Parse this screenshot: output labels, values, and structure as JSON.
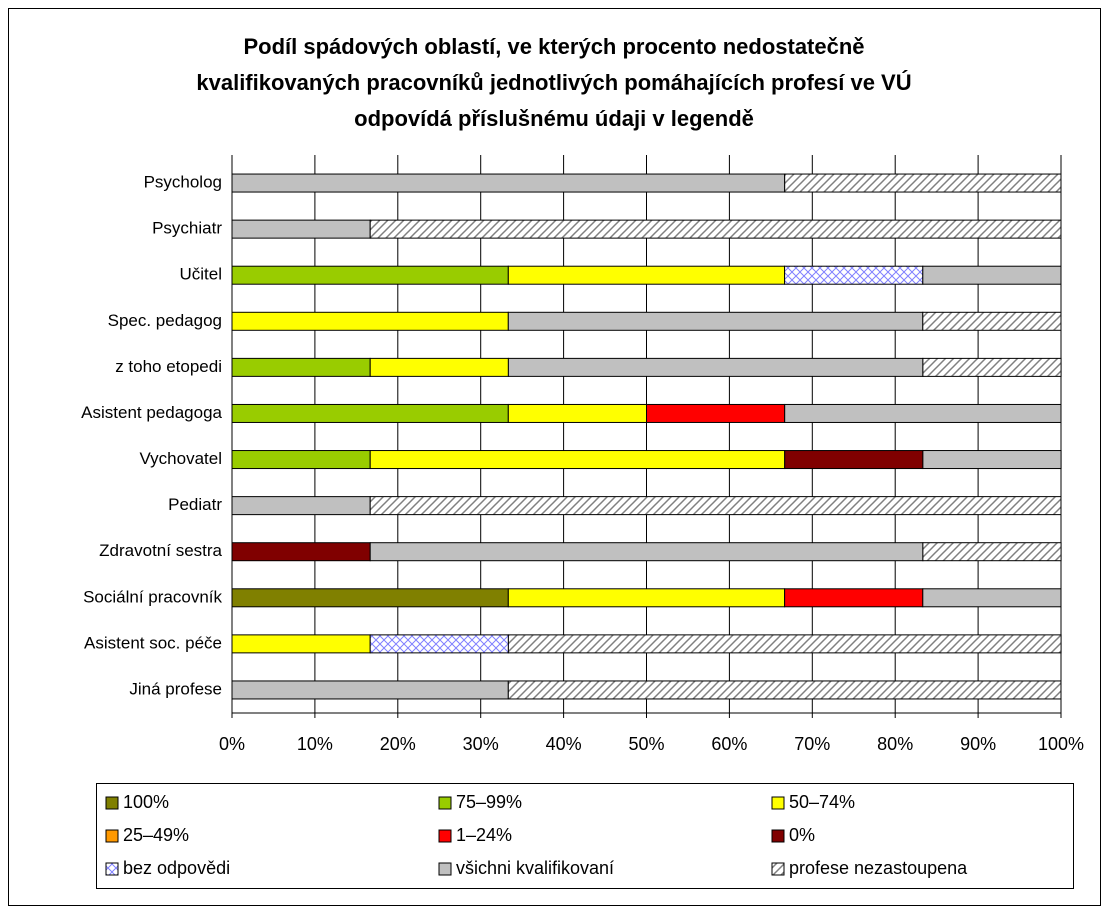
{
  "chart_data": {
    "type": "stacked-barh",
    "title": [
      "Podíl spádových oblastí, ve kterých procento nedostatečně",
      "kvalifikovaných pracovníků jednotlivých pomáhajících profesí ve VÚ",
      "odpovídá příslušnému údaji v legendě"
    ],
    "categories": [
      "Psycholog",
      "Psychiatr",
      "Učitel",
      "Spec. pedagog",
      "z toho etopedi",
      "Asistent pedagoga",
      "Vychovatel",
      "Pediatr",
      "Zdravotní sestra",
      "Sociální pracovník",
      "Asistent soc. péče",
      "Jiná profese"
    ],
    "series": [
      {
        "name": "100%",
        "color": "#808000",
        "values": [
          0,
          0,
          0,
          0,
          0,
          0,
          0,
          0,
          0,
          33.33,
          0,
          0
        ]
      },
      {
        "name": "75–99%",
        "color": "#99cc00",
        "values": [
          0,
          0,
          33.33,
          0,
          16.67,
          33.33,
          16.67,
          0,
          0,
          0,
          0,
          0
        ]
      },
      {
        "name": "50–74%",
        "color": "#ffff00",
        "values": [
          0,
          0,
          33.33,
          33.33,
          16.67,
          16.67,
          50,
          0,
          0,
          33.33,
          16.67,
          0
        ]
      },
      {
        "name": "25–49%",
        "color": "#ff9900",
        "values": [
          0,
          0,
          0,
          0,
          0,
          0,
          0,
          0,
          0,
          0,
          0,
          0
        ]
      },
      {
        "name": "1–24%",
        "color": "#ff0000",
        "values": [
          0,
          0,
          0,
          0,
          0,
          16.67,
          0,
          0,
          0,
          16.67,
          0,
          0
        ]
      },
      {
        "name": "0%",
        "color": "#800000",
        "values": [
          0,
          0,
          0,
          0,
          0,
          0,
          16.67,
          0,
          16.67,
          0,
          0,
          0
        ]
      },
      {
        "name": "bez odpovědi",
        "color": "#8080ff",
        "pattern": "crosshatch",
        "values": [
          0,
          0,
          16.67,
          0,
          0,
          0,
          0,
          0,
          0,
          0,
          16.67,
          0
        ]
      },
      {
        "name": "všichni kvalifikovaní",
        "color": "#c0c0c0",
        "values": [
          66.67,
          16.67,
          16.67,
          50,
          50,
          33.33,
          16.67,
          16.67,
          66.67,
          16.67,
          0,
          33.33
        ]
      },
      {
        "name": "profese nezastoupena",
        "color": "#808080",
        "pattern": "diagonal",
        "values": [
          33.33,
          83.33,
          0,
          16.67,
          16.67,
          0,
          0,
          83.33,
          16.67,
          0,
          66.67,
          66.67
        ]
      }
    ],
    "xlim": [
      0,
      100
    ],
    "xticks": [
      {
        "value": 0,
        "label": "0%"
      },
      {
        "value": 10,
        "label": "10%"
      },
      {
        "value": 20,
        "label": "20%"
      },
      {
        "value": 30,
        "label": "30%"
      },
      {
        "value": 40,
        "label": "40%"
      },
      {
        "value": 50,
        "label": "50%"
      },
      {
        "value": 60,
        "label": "60%"
      },
      {
        "value": 70,
        "label": "70%"
      },
      {
        "value": 80,
        "label": "80%"
      },
      {
        "value": 90,
        "label": "90%"
      },
      {
        "value": 100,
        "label": "100%"
      }
    ],
    "grid": true,
    "legend": "bottom"
  }
}
